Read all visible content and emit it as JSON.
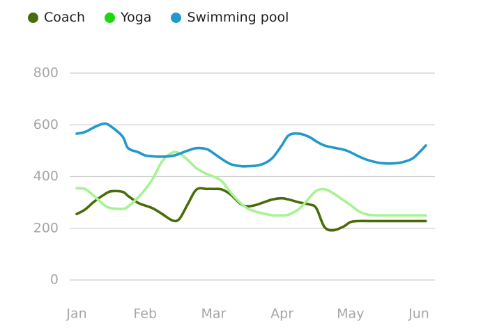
{
  "chart_data": {
    "type": "line",
    "title": "",
    "xlabel": "",
    "ylabel": "",
    "categories": [
      "Jan",
      "Feb",
      "Mar",
      "Apr",
      "May",
      "Jun"
    ],
    "ylim": [
      0,
      800
    ],
    "yticks": [
      "0",
      "200",
      "400",
      "600",
      "800"
    ],
    "legend_position": "top-left",
    "grid": true,
    "smooth": true,
    "x": [
      0,
      0.12,
      0.25,
      0.4,
      0.5,
      0.67,
      0.75,
      0.9,
      1.0,
      1.12,
      1.25,
      1.4,
      1.5,
      1.62,
      1.75,
      1.9,
      2.0,
      2.12,
      2.25,
      2.4,
      2.5,
      2.62,
      2.75,
      2.87,
      3.0,
      3.1,
      3.25,
      3.4,
      3.5,
      3.62,
      3.75,
      3.9,
      4.0,
      4.12,
      4.25,
      4.4,
      4.5,
      4.62,
      4.75,
      4.9,
      5.0,
      5.1
    ],
    "series": [
      {
        "name": "Coach",
        "color": "#4a6b0a",
        "values": [
          255,
          272,
          302,
          330,
          343,
          341,
          325,
          298,
          288,
          276,
          255,
          230,
          236,
          292,
          350,
          352,
          352,
          350,
          330,
          293,
          285,
          290,
          302,
          312,
          316,
          311,
          300,
          292,
          278,
          205,
          192,
          207,
          224,
          228,
          228,
          228,
          228,
          228,
          228,
          228,
          228,
          228
        ]
      },
      {
        "name": "Yoga",
        "color": "#1ed80e",
        "line_color": "#a6f392",
        "values": [
          355,
          352,
          326,
          290,
          278,
          275,
          284,
          320,
          350,
          395,
          460,
          493,
          490,
          465,
          432,
          410,
          400,
          382,
          338,
          296,
          276,
          264,
          256,
          250,
          250,
          253,
          275,
          318,
          345,
          351,
          335,
          308,
          290,
          266,
          253,
          250,
          250,
          250,
          250,
          250,
          250,
          250
        ]
      },
      {
        "name": "Swimming pool",
        "color": "#2299c9",
        "values": [
          566,
          572,
          590,
          605,
          594,
          555,
          510,
          494,
          482,
          478,
          477,
          480,
          488,
          500,
          510,
          506,
          490,
          468,
          448,
          440,
          440,
          442,
          452,
          475,
          522,
          560,
          566,
          553,
          536,
          520,
          512,
          504,
          494,
          478,
          464,
          454,
          451,
          451,
          455,
          469,
          492,
          520
        ]
      }
    ]
  }
}
